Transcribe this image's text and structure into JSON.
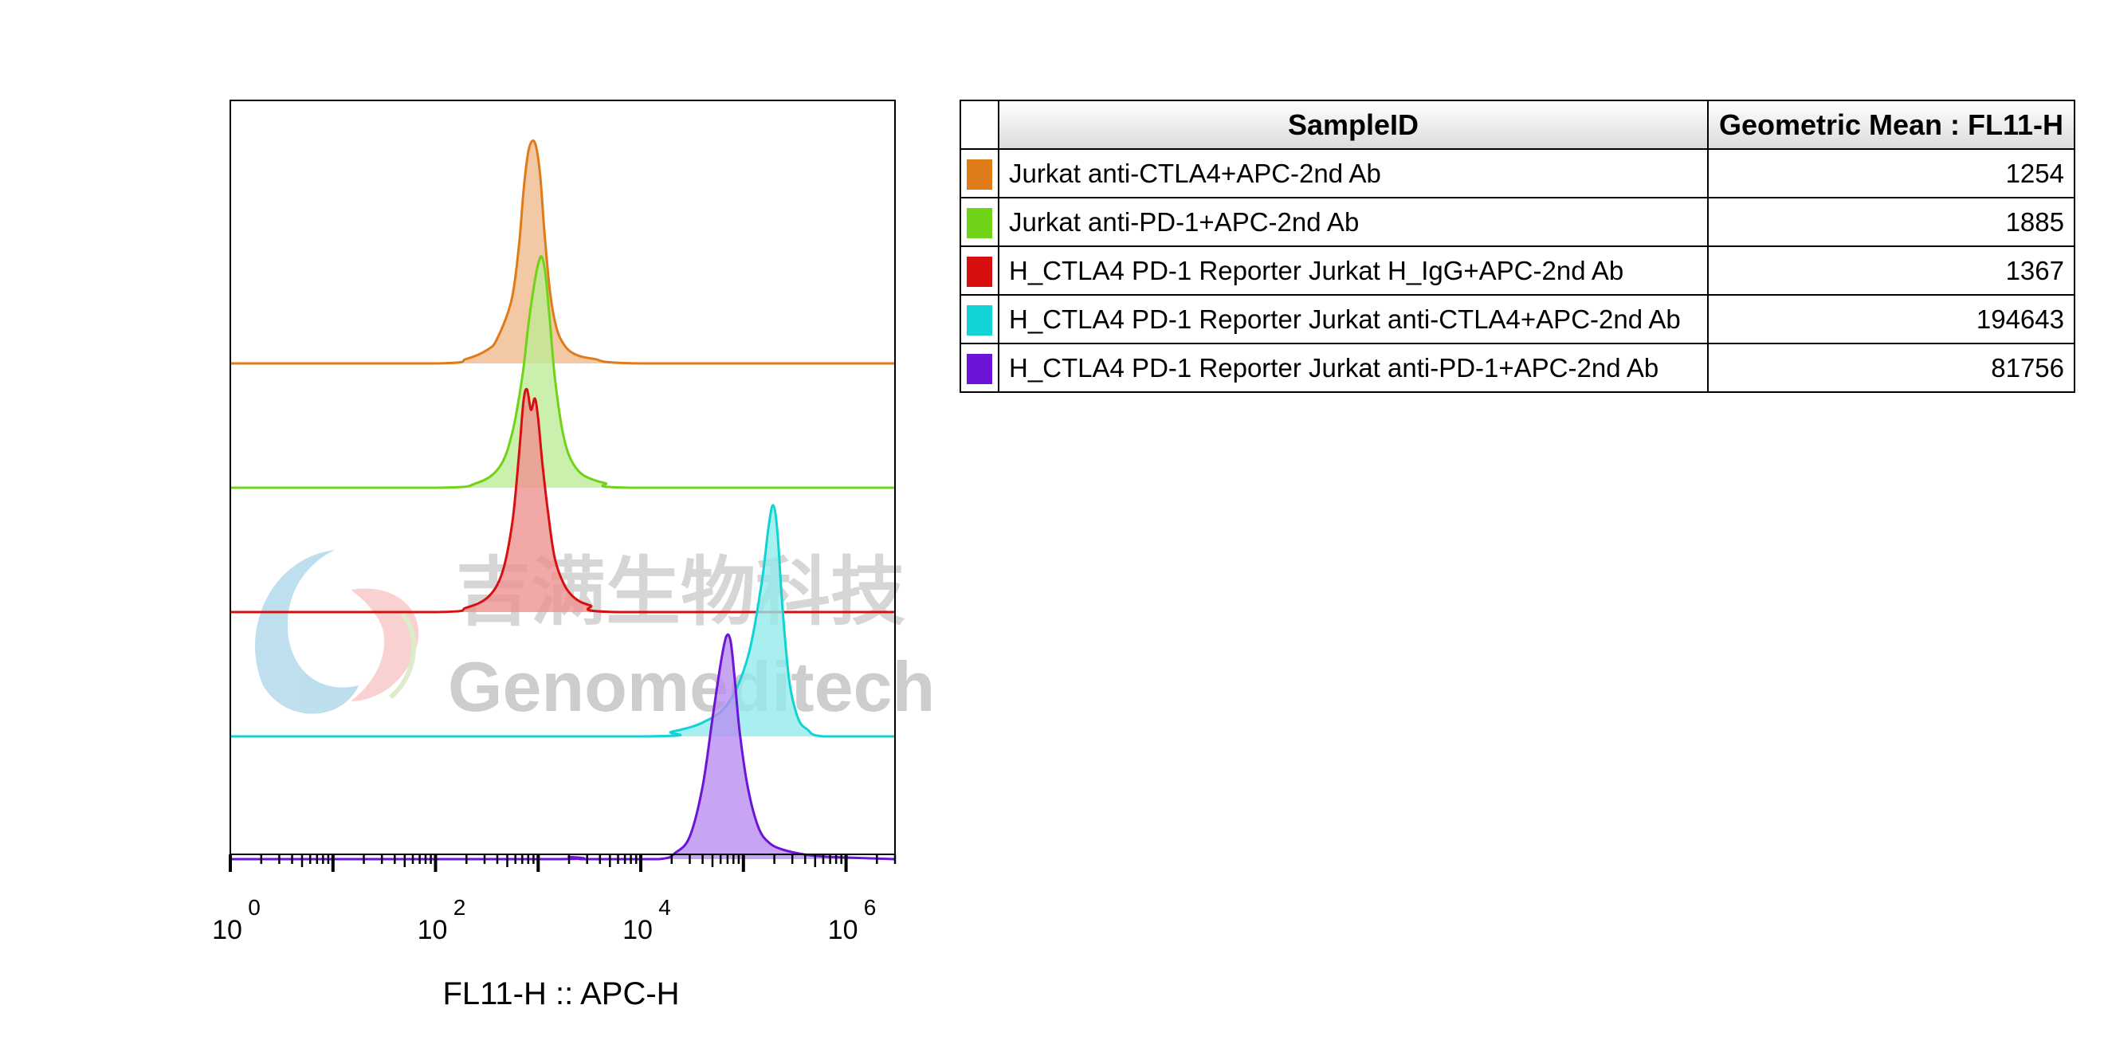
{
  "chart_data": {
    "type": "area",
    "xlabel": "FL11-H :: APC-H",
    "x_scale": "log",
    "xlim": [
      1,
      3000000
    ],
    "x_ticks": [
      {
        "base": "10",
        "exp": "0",
        "value": 1
      },
      {
        "base": "10",
        "exp": "2",
        "value": 100
      },
      {
        "base": "10",
        "exp": "4",
        "value": 10000
      },
      {
        "base": "10",
        "exp": "6",
        "value": 1000000
      }
    ],
    "layout": "stacked-offset histograms",
    "series": [
      {
        "color": "#e07b1a",
        "fill": "#efb98a",
        "x": [
          1,
          100,
          200,
          320,
          400,
          550,
          650,
          720,
          800,
          880,
          960,
          1050,
          1150,
          1300,
          1500,
          1800,
          2300,
          3500,
          10000,
          3000000
        ],
        "y": [
          0,
          0,
          2,
          6,
          11,
          28,
          52,
          76,
          93,
          98,
          95,
          82,
          58,
          32,
          16,
          8,
          4,
          2,
          0,
          0
        ]
      },
      {
        "color": "#6fd317",
        "fill": "#bdeb96",
        "x": [
          1,
          100,
          250,
          420,
          560,
          700,
          800,
          900,
          990,
          1080,
          1180,
          1300,
          1450,
          1700,
          2000,
          2500,
          3200,
          4500,
          8000,
          3000000
        ],
        "y": [
          0,
          0,
          2,
          9,
          24,
          48,
          70,
          86,
          96,
          100,
          92,
          72,
          48,
          26,
          14,
          7,
          4,
          2,
          0,
          0
        ]
      },
      {
        "color": "#d80f0f",
        "fill": "#ef8f8f",
        "x": [
          1,
          100,
          200,
          330,
          450,
          560,
          650,
          720,
          780,
          850,
          930,
          1000,
          1100,
          1250,
          1450,
          1800,
          2300,
          3200,
          6000,
          3000000
        ],
        "y": [
          0,
          0,
          2,
          7,
          18,
          40,
          70,
          94,
          99,
          90,
          95,
          86,
          66,
          44,
          24,
          12,
          6,
          3,
          0,
          0
        ]
      },
      {
        "color": "#11d3d3",
        "fill": "#92eaea",
        "x": [
          1,
          10000,
          20000,
          40000,
          70000,
          110000,
          150000,
          175000,
          195000,
          215000,
          240000,
          280000,
          340000,
          420000,
          600000,
          3000000
        ],
        "y": [
          0,
          0,
          2,
          6,
          14,
          34,
          66,
          90,
          100,
          88,
          56,
          24,
          8,
          3,
          0,
          0
        ]
      },
      {
        "color": "#6c15d9",
        "fill": "#b98cef",
        "x": [
          1,
          1500,
          2000,
          2600,
          3500,
          15000,
          22000,
          30000,
          40000,
          50000,
          60000,
          68000,
          75000,
          82000,
          92000,
          110000,
          140000,
          180000,
          250000,
          400000,
          700000,
          3000000
        ],
        "y": [
          0,
          0,
          1,
          0,
          0,
          0,
          3,
          10,
          32,
          62,
          86,
          98,
          96,
          80,
          56,
          32,
          14,
          7,
          4,
          2,
          1,
          0
        ]
      }
    ]
  },
  "watermark": {
    "cn": "吉满生物科技",
    "en": "Genomeditech"
  },
  "table": {
    "headers": [
      "SampleID",
      "Geometric Mean : FL11-H"
    ],
    "rows": [
      {
        "color": "#e07b1a",
        "sample": "Jurkat anti-CTLA4+APC-2nd Ab",
        "value": "1254"
      },
      {
        "color": "#6fd317",
        "sample": "Jurkat anti-PD-1+APC-2nd Ab",
        "value": "1885"
      },
      {
        "color": "#d80f0f",
        "sample": "H_CTLA4 PD-1 Reporter Jurkat H_IgG+APC-2nd Ab",
        "value": "1367"
      },
      {
        "color": "#11d3d3",
        "sample": "H_CTLA4 PD-1 Reporter Jurkat anti-CTLA4+APC-2nd Ab",
        "value": "194643"
      },
      {
        "color": "#6c15d9",
        "sample": "H_CTLA4 PD-1 Reporter Jurkat anti-PD-1+APC-2nd Ab",
        "value": "81756"
      }
    ]
  }
}
